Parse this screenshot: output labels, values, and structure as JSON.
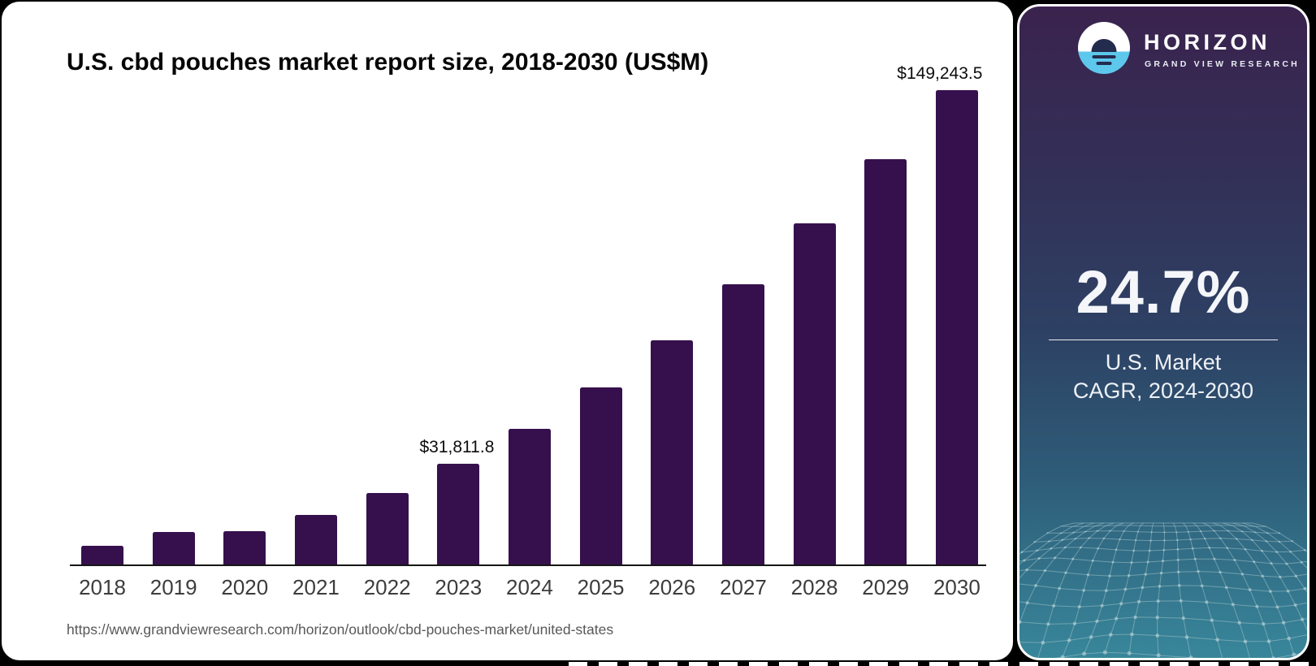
{
  "chart": {
    "title": "U.S. cbd pouches market report size, 2018-2030 (US$M)",
    "source_url": "https://www.grandviewresearch.com/horizon/outlook/cbd-pouches-market/united-states",
    "bar_color": "#36104d",
    "axis_color": "#161616",
    "tick_color": "#3d3d3d"
  },
  "chart_data": {
    "type": "bar",
    "title": "U.S. cbd pouches market report size, 2018-2030 (US$M)",
    "unit": "US$M",
    "categories": [
      "2018",
      "2019",
      "2020",
      "2021",
      "2022",
      "2023",
      "2024",
      "2025",
      "2026",
      "2027",
      "2028",
      "2029",
      "2030"
    ],
    "values": [
      5900,
      10230,
      10480,
      15600,
      22500,
      31811.8,
      42700,
      55700,
      70600,
      88200,
      107400,
      127600,
      149243.5
    ],
    "labeled_points": [
      {
        "category": "2023",
        "label": "$31,811.8"
      },
      {
        "category": "2030",
        "label": "$149,243.5"
      }
    ],
    "xlabel": "",
    "ylabel": "",
    "ylim": [
      0,
      149243.5
    ],
    "grid": false,
    "legend": false
  },
  "sidebar": {
    "brand": "HORIZON",
    "brand_sub": "GRAND VIEW RESEARCH",
    "cagr_value": "24.7%",
    "cagr_label_line1": "U.S. Market",
    "cagr_label_line2": "CAGR, 2024-2030",
    "logo_colors": {
      "circle_top": "#ffffff",
      "circle_bottom": "#5ec7ec",
      "glyph": "#242c4e"
    },
    "gradient_colors": [
      "#3a234e",
      "#333057",
      "#2d4164",
      "#2e5c78",
      "#38869a"
    ]
  }
}
